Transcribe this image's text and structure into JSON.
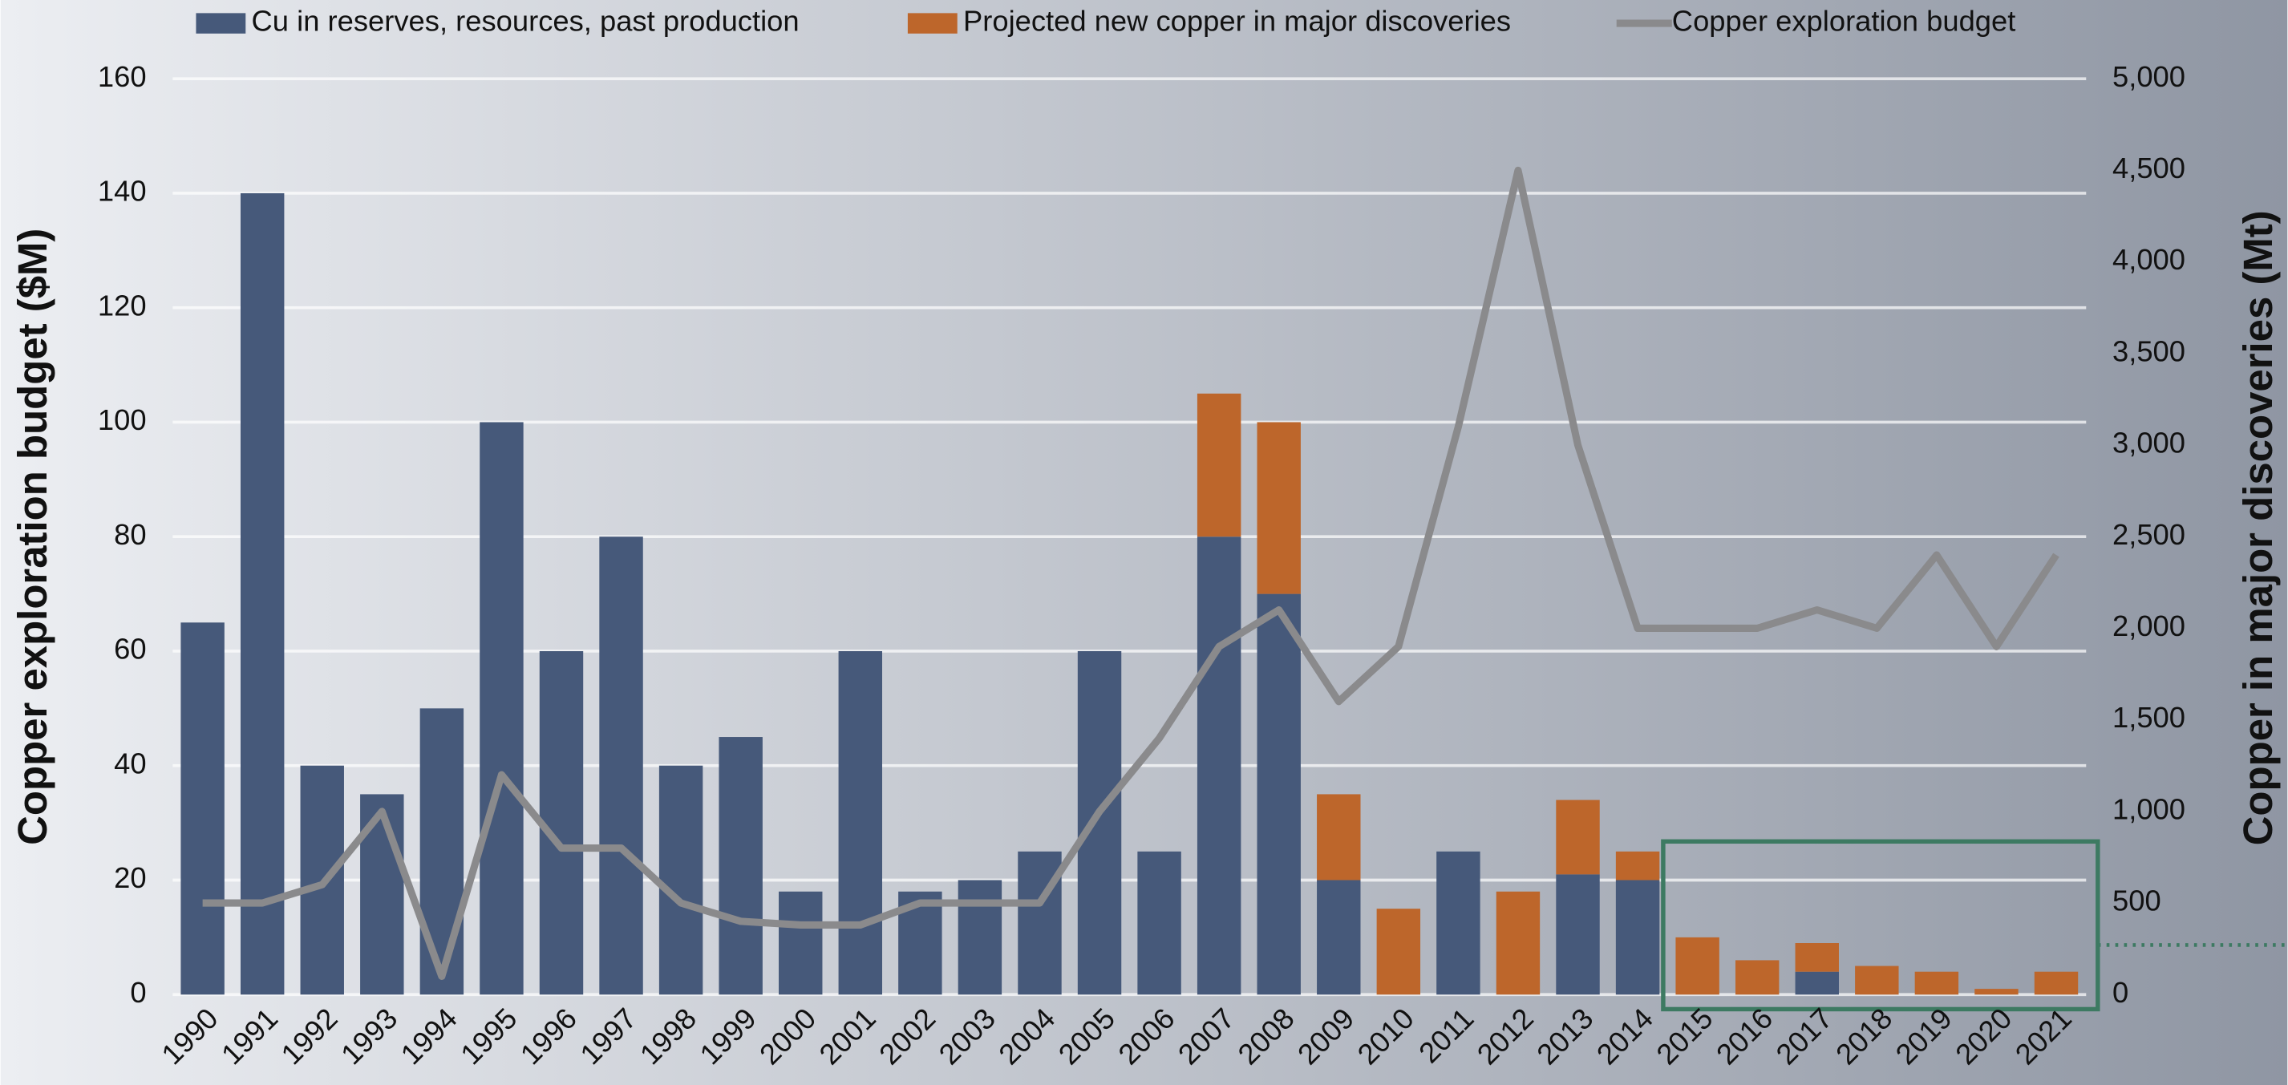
{
  "chart_data": {
    "type": "bar-line",
    "ylabel": "Copper exploration budget ($M)",
    "y2label": "Copper in major discoveries (Mt)",
    "categories": [
      "1990",
      "1991",
      "1992",
      "1993",
      "1994",
      "1995",
      "1996",
      "1997",
      "1998",
      "1999",
      "2000",
      "2001",
      "2002",
      "2003",
      "2004",
      "2005",
      "2006",
      "2007",
      "2008",
      "2009",
      "2010",
      "2011",
      "2012",
      "2013",
      "2014",
      "2015",
      "2016",
      "2017",
      "2018",
      "2019",
      "2020",
      "2021"
    ],
    "series": [
      {
        "name": "Cu in reserves, resources, past production",
        "color": "#46597a",
        "kind": "bar",
        "values": [
          65,
          140,
          40,
          35,
          50,
          100,
          60,
          80,
          40,
          45,
          18,
          60,
          18,
          20,
          25,
          60,
          25,
          80,
          70,
          20,
          0,
          25,
          0,
          21,
          20,
          0,
          0,
          4,
          0,
          0,
          0,
          0
        ]
      },
      {
        "name": "Projected new copper in major discoveries",
        "color": "#bd662b",
        "kind": "bar",
        "values": [
          0,
          0,
          0,
          0,
          0,
          0,
          0,
          0,
          0,
          0,
          0,
          0,
          0,
          0,
          0,
          0,
          0,
          25,
          30,
          15,
          15,
          0,
          18,
          13,
          5,
          10,
          6,
          5,
          5,
          4,
          1,
          4
        ]
      },
      {
        "name": "Copper exploration budget",
        "color": "#8a8a8c",
        "kind": "line",
        "axis": "y2",
        "values": [
          500,
          500,
          600,
          1000,
          100,
          1200,
          800,
          800,
          500,
          400,
          380,
          380,
          500,
          500,
          500,
          1000,
          1400,
          1900,
          2100,
          1600,
          1900,
          3100,
          4500,
          3000,
          2000,
          2000,
          2000,
          2100,
          2000,
          2400,
          1900,
          2400
        ]
      }
    ],
    "ylim": [
      0,
      160
    ],
    "yticks": [
      0,
      20,
      40,
      60,
      80,
      100,
      120,
      140,
      160
    ],
    "y2lim": [
      0,
      5000
    ],
    "y2ticks": [
      0,
      500,
      {
        "value": 1000,
        "label": "1,000"
      },
      {
        "value": 1500,
        "label": "1,500"
      },
      {
        "value": 2000,
        "label": "2,000"
      },
      {
        "value": 2500,
        "label": "2,500"
      },
      {
        "value": 3000,
        "label": "3,000"
      },
      {
        "value": 3500,
        "label": "3,500"
      },
      {
        "value": 4000,
        "label": "4,000"
      },
      {
        "value": 4500,
        "label": "4,500"
      },
      {
        "value": 5000,
        "label": "5,000"
      }
    ],
    "grid": true,
    "stacked": true,
    "legend": "top"
  }
}
